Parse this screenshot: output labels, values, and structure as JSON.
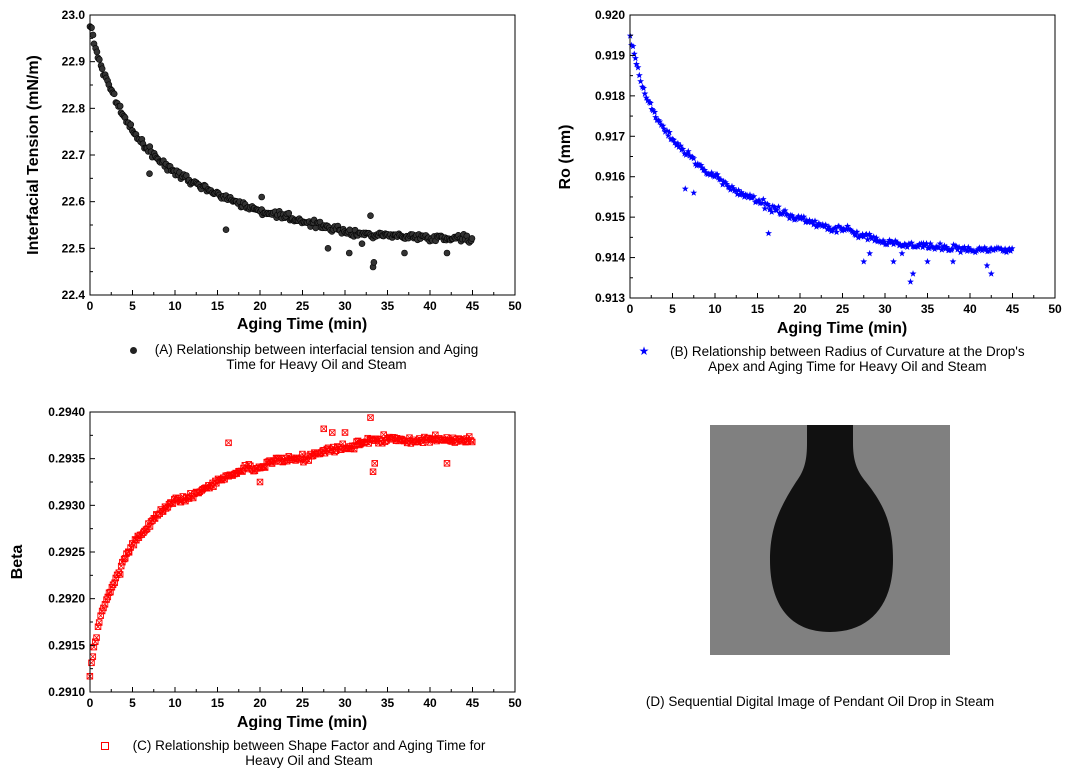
{
  "chart_data": [
    {
      "id": "A",
      "type": "scatter",
      "xlabel": "Aging Time (min)",
      "ylabel": "Interfacial Tension (mN/m)",
      "xlim": [
        0,
        50
      ],
      "ylim": [
        22.4,
        23.0
      ],
      "xticks": [
        "0",
        "5",
        "10",
        "15",
        "20",
        "25",
        "30",
        "35",
        "40",
        "45",
        "50"
      ],
      "yticks": [
        "22.4",
        "22.5",
        "22.6",
        "22.7",
        "22.8",
        "22.9",
        "23.0"
      ],
      "grid": false,
      "series": [
        {
          "color": "#000000",
          "marker": "circle",
          "x": [
            0,
            0.5,
            1,
            1.5,
            2,
            3,
            4,
            5,
            6,
            7,
            8,
            9,
            10,
            12,
            14,
            16,
            18,
            20,
            22,
            25,
            28,
            30,
            33,
            35,
            38,
            40,
            42,
            45
          ],
          "y": [
            22.98,
            22.94,
            22.91,
            22.88,
            22.86,
            22.82,
            22.78,
            22.75,
            22.73,
            22.71,
            22.69,
            22.675,
            22.665,
            22.645,
            22.625,
            22.61,
            22.595,
            22.58,
            22.57,
            22.56,
            22.545,
            22.535,
            22.53,
            22.528,
            22.525,
            22.524,
            22.523,
            22.522
          ],
          "outliers_x": [
            7,
            16,
            20.2,
            28,
            30.5,
            32,
            33,
            33.3,
            33.4,
            37,
            42
          ],
          "outliers_y": [
            22.66,
            22.54,
            22.61,
            22.5,
            22.49,
            22.51,
            22.57,
            22.46,
            22.47,
            22.49,
            22.49
          ]
        }
      ],
      "legend_text": "(A) Relationship between interfacial tension and Aging Time for Heavy Oil and Steam",
      "legend_placement": "bottom"
    },
    {
      "id": "B",
      "type": "scatter",
      "xlabel": "Aging Time (min)",
      "ylabel": "Ro (mm)",
      "xlim": [
        0,
        50
      ],
      "ylim": [
        0.913,
        0.92
      ],
      "xticks": [
        "0",
        "5",
        "10",
        "15",
        "20",
        "25",
        "30",
        "35",
        "40",
        "45",
        "50"
      ],
      "yticks": [
        "0.913",
        "0.914",
        "0.915",
        "0.916",
        "0.917",
        "0.918",
        "0.919",
        "0.920"
      ],
      "grid": false,
      "series": [
        {
          "color": "#0000ff",
          "marker": "star",
          "x": [
            0,
            0.5,
            1,
            1.5,
            2,
            3,
            4,
            5,
            6,
            7,
            8,
            9,
            10,
            12,
            14,
            16,
            18,
            20,
            22,
            25,
            28,
            30,
            33,
            35,
            38,
            40,
            42,
            45
          ],
          "y": [
            0.9195,
            0.919,
            0.9186,
            0.9182,
            0.9179,
            0.9175,
            0.9172,
            0.9169,
            0.9167,
            0.9165,
            0.9163,
            0.9161,
            0.916,
            0.9157,
            0.9155,
            0.9153,
            0.9151,
            0.915,
            0.9148,
            0.9147,
            0.9145,
            0.9144,
            0.9143,
            0.9143,
            0.9142,
            0.9142,
            0.9142,
            0.9142
          ],
          "outliers_x": [
            6.5,
            7.5,
            16.3,
            27.5,
            28.2,
            31,
            32,
            33,
            33.3,
            35,
            38,
            42,
            42.5
          ],
          "outliers_y": [
            0.9157,
            0.9156,
            0.9146,
            0.9139,
            0.9141,
            0.9139,
            0.9141,
            0.9134,
            0.9136,
            0.9139,
            0.9139,
            0.9138,
            0.9136
          ]
        }
      ],
      "legend_text": "(B) Relationship between Radius of Curvature at the Drop's Apex and Aging Time for Heavy Oil and Steam",
      "legend_placement": "bottom"
    },
    {
      "id": "C",
      "type": "scatter",
      "xlabel": "Aging Time (min)",
      "ylabel": "Beta",
      "xlim": [
        0,
        50
      ],
      "ylim": [
        0.291,
        0.294
      ],
      "xticks": [
        "0",
        "5",
        "10",
        "15",
        "20",
        "25",
        "30",
        "35",
        "40",
        "45",
        "50"
      ],
      "yticks": [
        "0.2910",
        "0.2915",
        "0.2920",
        "0.2925",
        "0.2930",
        "0.2935",
        "0.2940"
      ],
      "grid": false,
      "series": [
        {
          "color": "#ff0000",
          "marker": "crossed-square",
          "x": [
            0,
            0.5,
            1,
            1.5,
            2,
            3,
            4,
            5,
            6,
            7,
            8,
            9,
            10,
            12,
            14,
            16,
            18,
            20,
            22,
            25,
            28,
            30,
            33,
            35,
            38,
            40,
            42,
            45
          ],
          "y": [
            0.2912,
            0.2915,
            0.2917,
            0.2919,
            0.292,
            0.2922,
            0.2924,
            0.2926,
            0.2927,
            0.2928,
            0.2929,
            0.293,
            0.29305,
            0.2931,
            0.2932,
            0.2933,
            0.2934,
            0.2934,
            0.2935,
            0.2935,
            0.2936,
            0.2936,
            0.2937,
            0.2937,
            0.2937,
            0.2937,
            0.2937,
            0.2937
          ],
          "outliers_x": [
            16.3,
            20,
            27.5,
            28.5,
            30,
            33,
            33.3,
            33.5,
            42
          ],
          "outliers_y": [
            0.29367,
            0.29325,
            0.29382,
            0.29378,
            0.29378,
            0.29394,
            0.29336,
            0.29345,
            0.29345
          ]
        }
      ],
      "legend_text": "(C) Relationship between Shape Factor and Aging Time for Heavy Oil and Steam",
      "legend_placement": "bottom"
    }
  ],
  "image_panel": {
    "caption": "(D) Sequential Digital Image of Pendant Oil Drop in Steam",
    "background_color": "#808080",
    "drop_color": "#111111"
  }
}
